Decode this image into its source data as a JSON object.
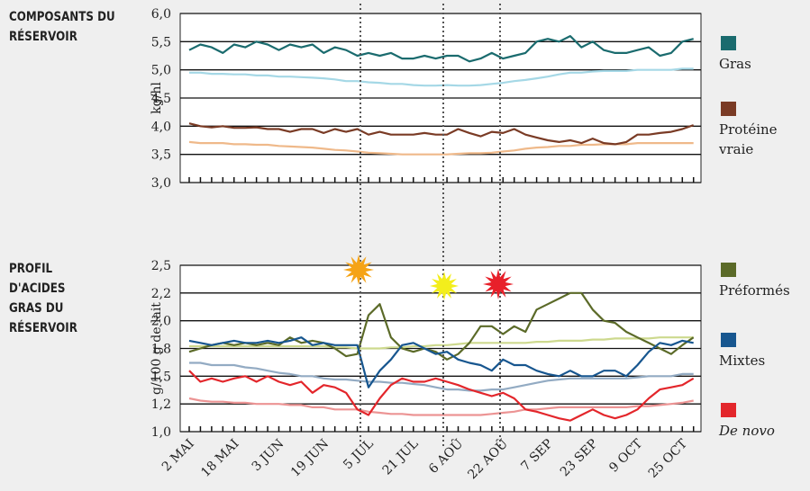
{
  "chart_data": [
    {
      "type": "line",
      "title": "COMPOSANTS DU RÉSERVOIR",
      "y_label": "kg/hl",
      "ylim": [
        3.0,
        6.0
      ],
      "yticks": [
        {
          "value": 3.0,
          "label": "3,0"
        },
        {
          "value": 3.5,
          "label": "3,5"
        },
        {
          "value": 4.0,
          "label": "4,0"
        },
        {
          "value": 4.5,
          "label": "4,5"
        },
        {
          "value": 5.0,
          "label": "5,0"
        },
        {
          "value": 5.5,
          "label": "5,5"
        },
        {
          "value": 6.0,
          "label": "6,0"
        }
      ],
      "grid": true,
      "series": [
        {
          "color": "#a5d8e6",
          "values": [
            4.95,
            4.95,
            4.93,
            4.93,
            4.92,
            4.92,
            4.9,
            4.9,
            4.88,
            4.88,
            4.87,
            4.86,
            4.85,
            4.83,
            4.8,
            4.8,
            4.78,
            4.77,
            4.75,
            4.75,
            4.73,
            4.72,
            4.72,
            4.73,
            4.72,
            4.72,
            4.73,
            4.75,
            4.77,
            4.8,
            4.82,
            4.85,
            4.88,
            4.92,
            4.95,
            4.95,
            4.97,
            4.98,
            4.98,
            4.98,
            5.0,
            5.0,
            5.0,
            5.0,
            5.02,
            5.02
          ]
        },
        {
          "name": "Gras",
          "color": "#1a6b6e",
          "values": [
            5.35,
            5.45,
            5.4,
            5.3,
            5.45,
            5.4,
            5.5,
            5.45,
            5.35,
            5.45,
            5.4,
            5.45,
            5.3,
            5.4,
            5.35,
            5.25,
            5.3,
            5.25,
            5.3,
            5.2,
            5.2,
            5.25,
            5.2,
            5.25,
            5.25,
            5.15,
            5.2,
            5.3,
            5.2,
            5.25,
            5.3,
            5.5,
            5.55,
            5.5,
            5.6,
            5.4,
            5.5,
            5.35,
            5.3,
            5.3,
            5.35,
            5.4,
            5.25,
            5.3,
            5.5,
            5.55
          ]
        },
        {
          "color": "#efb98a",
          "values": [
            3.72,
            3.7,
            3.7,
            3.7,
            3.68,
            3.68,
            3.67,
            3.67,
            3.65,
            3.64,
            3.63,
            3.62,
            3.6,
            3.58,
            3.57,
            3.55,
            3.53,
            3.52,
            3.51,
            3.5,
            3.5,
            3.5,
            3.5,
            3.5,
            3.51,
            3.52,
            3.52,
            3.53,
            3.55,
            3.57,
            3.6,
            3.62,
            3.63,
            3.65,
            3.65,
            3.67,
            3.67,
            3.68,
            3.68,
            3.68,
            3.7,
            3.7,
            3.7,
            3.7,
            3.7,
            3.7
          ]
        },
        {
          "name": "Protéine vraie",
          "color": "#7a3b25",
          "values": [
            4.05,
            4.0,
            3.98,
            4.0,
            3.97,
            3.97,
            3.98,
            3.95,
            3.95,
            3.9,
            3.95,
            3.95,
            3.88,
            3.95,
            3.9,
            3.95,
            3.85,
            3.9,
            3.85,
            3.85,
            3.85,
            3.88,
            3.85,
            3.85,
            3.95,
            3.88,
            3.82,
            3.9,
            3.88,
            3.95,
            3.85,
            3.8,
            3.75,
            3.72,
            3.75,
            3.7,
            3.78,
            3.7,
            3.68,
            3.72,
            3.85,
            3.85,
            3.88,
            3.9,
            3.95,
            4.02
          ]
        }
      ]
    },
    {
      "type": "line",
      "title": "PROFIL D'ACIDES GRAS DU RÉSERVOIR",
      "y_label": "g/100 g de lait",
      "categories": [
        "2 MAI",
        null,
        null,
        null,
        "18 MAI",
        null,
        null,
        null,
        "3 JUN",
        null,
        null,
        null,
        "19 JUN",
        null,
        null,
        null,
        "5 JUL",
        null,
        null,
        null,
        "21 JUL",
        null,
        null,
        null,
        "6 AOÛ",
        null,
        null,
        null,
        "22 AOÛ",
        null,
        null,
        null,
        "7 SEP",
        null,
        null,
        null,
        "23 SEP",
        null,
        null,
        null,
        "9 OCT",
        null,
        null,
        null,
        "25 OCT",
        null
      ],
      "ylim": [
        1.0,
        2.5
      ],
      "yticks": [
        {
          "value": 1.0,
          "label": "1,0"
        },
        {
          "value": 1.25,
          "label": "1,2"
        },
        {
          "value": 1.5,
          "label": "1,5"
        },
        {
          "value": 1.75,
          "label": "1,8"
        },
        {
          "value": 2.0,
          "label": "2,0"
        },
        {
          "value": 2.25,
          "label": "2,2"
        },
        {
          "value": 2.5,
          "label": "2,5"
        }
      ],
      "grid": true,
      "series": [
        {
          "color": "#cdd98e",
          "values": [
            1.77,
            1.77,
            1.77,
            1.77,
            1.77,
            1.77,
            1.77,
            1.77,
            1.77,
            1.77,
            1.77,
            1.77,
            1.77,
            1.76,
            1.76,
            1.75,
            1.75,
            1.75,
            1.76,
            1.76,
            1.77,
            1.77,
            1.78,
            1.78,
            1.79,
            1.8,
            1.8,
            1.8,
            1.8,
            1.8,
            1.8,
            1.81,
            1.81,
            1.82,
            1.82,
            1.82,
            1.83,
            1.83,
            1.84,
            1.84,
            1.84,
            1.84,
            1.85,
            1.85,
            1.85,
            1.85
          ]
        },
        {
          "name": "Préformés",
          "color": "#5b6a28",
          "values": [
            1.72,
            1.75,
            1.78,
            1.8,
            1.78,
            1.8,
            1.78,
            1.8,
            1.78,
            1.85,
            1.8,
            1.82,
            1.8,
            1.75,
            1.68,
            1.7,
            2.05,
            2.15,
            1.85,
            1.75,
            1.72,
            1.75,
            1.72,
            1.65,
            1.7,
            1.8,
            1.95,
            1.95,
            1.88,
            1.95,
            1.9,
            2.1,
            2.15,
            2.2,
            2.25,
            2.25,
            2.1,
            2.0,
            1.98,
            1.9,
            1.85,
            1.8,
            1.75,
            1.7,
            1.78,
            1.85
          ]
        },
        {
          "color": "#93abc3",
          "values": [
            1.62,
            1.62,
            1.6,
            1.6,
            1.6,
            1.58,
            1.57,
            1.55,
            1.53,
            1.52,
            1.5,
            1.5,
            1.48,
            1.47,
            1.47,
            1.46,
            1.45,
            1.45,
            1.44,
            1.44,
            1.43,
            1.42,
            1.4,
            1.38,
            1.38,
            1.37,
            1.37,
            1.38,
            1.38,
            1.4,
            1.42,
            1.44,
            1.46,
            1.47,
            1.48,
            1.48,
            1.48,
            1.48,
            1.48,
            1.48,
            1.49,
            1.5,
            1.5,
            1.5,
            1.52,
            1.52
          ]
        },
        {
          "name": "Mixtes",
          "color": "#17568f",
          "values": [
            1.82,
            1.8,
            1.78,
            1.8,
            1.82,
            1.8,
            1.8,
            1.82,
            1.8,
            1.82,
            1.85,
            1.78,
            1.8,
            1.78,
            1.78,
            1.78,
            1.4,
            1.55,
            1.65,
            1.78,
            1.8,
            1.75,
            1.7,
            1.72,
            1.65,
            1.62,
            1.6,
            1.55,
            1.65,
            1.6,
            1.6,
            1.55,
            1.52,
            1.5,
            1.55,
            1.5,
            1.5,
            1.55,
            1.55,
            1.5,
            1.6,
            1.72,
            1.8,
            1.78,
            1.82,
            1.8
          ]
        },
        {
          "color": "#ec9494",
          "values": [
            1.3,
            1.28,
            1.27,
            1.27,
            1.26,
            1.26,
            1.25,
            1.25,
            1.25,
            1.24,
            1.24,
            1.22,
            1.22,
            1.2,
            1.2,
            1.2,
            1.18,
            1.17,
            1.16,
            1.16,
            1.15,
            1.15,
            1.15,
            1.15,
            1.15,
            1.15,
            1.15,
            1.16,
            1.17,
            1.18,
            1.2,
            1.2,
            1.21,
            1.22,
            1.22,
            1.22,
            1.22,
            1.22,
            1.22,
            1.22,
            1.23,
            1.23,
            1.24,
            1.25,
            1.26,
            1.28
          ]
        },
        {
          "name": "De novo",
          "italic": true,
          "color": "#e3262b",
          "values": [
            1.55,
            1.45,
            1.48,
            1.45,
            1.48,
            1.5,
            1.45,
            1.5,
            1.45,
            1.42,
            1.45,
            1.35,
            1.42,
            1.4,
            1.35,
            1.2,
            1.15,
            1.3,
            1.42,
            1.48,
            1.45,
            1.45,
            1.48,
            1.45,
            1.42,
            1.38,
            1.35,
            1.32,
            1.35,
            1.3,
            1.2,
            1.18,
            1.15,
            1.12,
            1.1,
            1.15,
            1.2,
            1.15,
            1.12,
            1.15,
            1.2,
            1.3,
            1.38,
            1.4,
            1.42,
            1.48
          ]
        }
      ]
    }
  ]
}
